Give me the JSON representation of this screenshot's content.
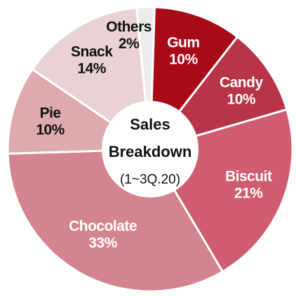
{
  "chart_data": {
    "type": "pie",
    "donut": true,
    "center_label": {
      "line1": "Sales",
      "line2": "Breakdown",
      "line3": "(1~3Q.20)"
    },
    "slices": [
      {
        "category": "Gum",
        "value": 10,
        "label": "10%",
        "color": "#a80a17",
        "text_color": "#ffffff"
      },
      {
        "category": "Candy",
        "value": 10,
        "label": "10%",
        "color": "#b73449",
        "text_color": "#ffffff"
      },
      {
        "category": "Biscuit",
        "value": 21,
        "label": "21%",
        "color": "#cf5c70",
        "text_color": "#ffffff"
      },
      {
        "category": "Chocolate",
        "value": 33,
        "label": "33%",
        "color": "#d4848f",
        "text_color": "#ffffff"
      },
      {
        "category": "Pie",
        "value": 10,
        "label": "10%",
        "color": "#ddaaae",
        "text_color": "#111111"
      },
      {
        "category": "Snack",
        "value": 14,
        "label": "14%",
        "color": "#e8d2d4",
        "text_color": "#111111"
      },
      {
        "category": "Others",
        "value": 2,
        "label": "2%",
        "color": "#ececec",
        "text_color": "#111111"
      }
    ]
  }
}
